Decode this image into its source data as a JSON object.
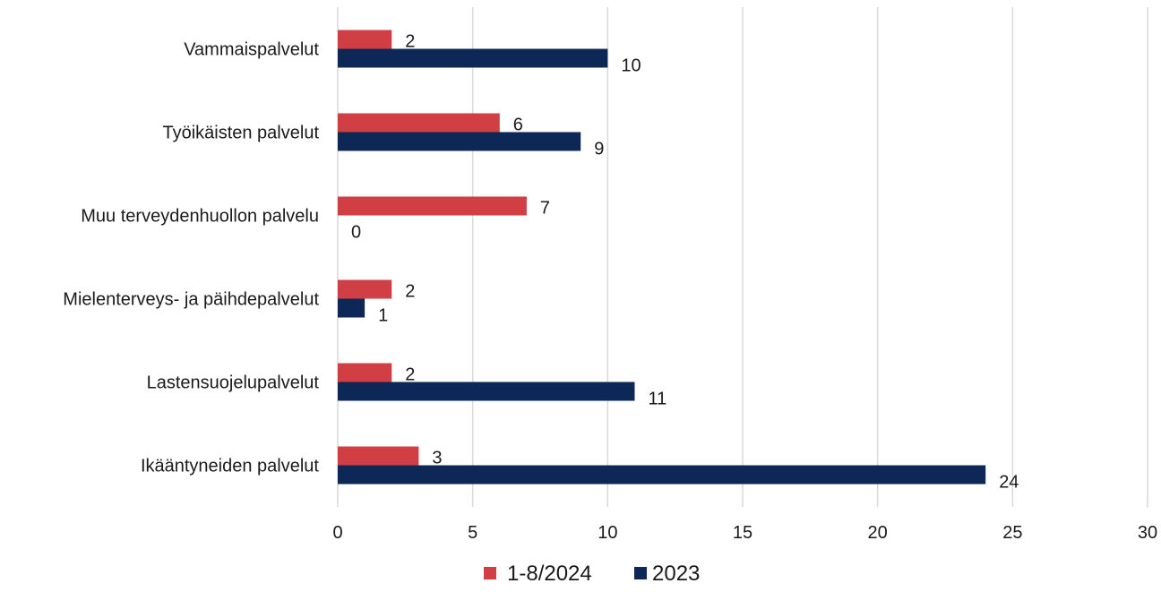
{
  "chart_data": {
    "type": "bar",
    "orientation": "horizontal",
    "categories": [
      "Vammaispalvelut",
      "Työikäisten palvelut",
      "Muu terveydenhuollon palvelu",
      "Mielenterveys- ja päihdepalvelut",
      "Lastensuojelupalvelut",
      "Ikääntyneiden palvelut"
    ],
    "series": [
      {
        "name": "1-8/2024",
        "color": "#d13f45",
        "values": [
          2,
          6,
          7,
          2,
          2,
          3
        ]
      },
      {
        "name": "2023",
        "color": "#0d2757",
        "values": [
          10,
          9,
          0,
          1,
          11,
          24
        ]
      }
    ],
    "xlim": [
      0,
      30
    ],
    "xticks": [
      0,
      5,
      10,
      15,
      20,
      25,
      30
    ],
    "grid": "vertical",
    "legend_position": "bottom",
    "data_labels": true
  }
}
